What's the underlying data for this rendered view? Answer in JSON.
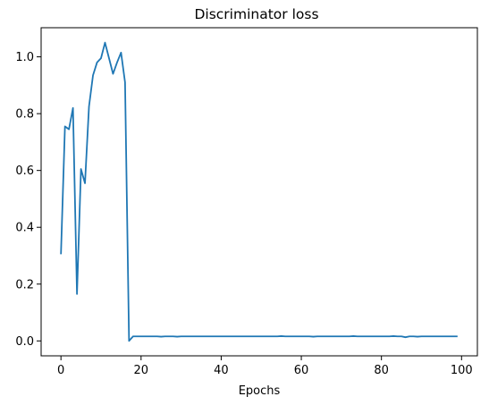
{
  "chart_data": {
    "type": "line",
    "title": "Discriminator loss",
    "xlabel": "Epochs",
    "ylabel": "",
    "xlim": [
      -4.95,
      103.95
    ],
    "ylim": [
      -0.0525,
      1.1025
    ],
    "xticks": [
      0,
      20,
      40,
      60,
      80,
      100
    ],
    "yticks": [
      0.0,
      0.2,
      0.4,
      0.6,
      0.8,
      1.0
    ],
    "xtick_labels": [
      "0",
      "20",
      "40",
      "60",
      "80",
      "100"
    ],
    "ytick_labels": [
      "0.0",
      "0.2",
      "0.4",
      "0.6",
      "0.8",
      "1.0"
    ],
    "grid": false,
    "legend": "none",
    "series": [
      {
        "color": "#1f77b4",
        "x": [
          0,
          1,
          2,
          3,
          4,
          5,
          6,
          7,
          8,
          9,
          10,
          11,
          12,
          13,
          14,
          15,
          16,
          17,
          18,
          19,
          20,
          21,
          22,
          23,
          24,
          25,
          26,
          27,
          28,
          29,
          30,
          31,
          32,
          33,
          34,
          35,
          36,
          37,
          38,
          39,
          40,
          41,
          42,
          43,
          44,
          45,
          46,
          47,
          48,
          49,
          50,
          51,
          52,
          53,
          54,
          55,
          56,
          57,
          58,
          59,
          60,
          61,
          62,
          63,
          64,
          65,
          66,
          67,
          68,
          69,
          70,
          71,
          72,
          73,
          74,
          75,
          76,
          77,
          78,
          79,
          80,
          81,
          82,
          83,
          84,
          85,
          86,
          87,
          88,
          89,
          90,
          91,
          92,
          93,
          94,
          95,
          96,
          97,
          98,
          99
        ],
        "values": [
          0.305,
          0.755,
          0.745,
          0.82,
          0.165,
          0.605,
          0.555,
          0.825,
          0.935,
          0.98,
          0.995,
          1.05,
          0.995,
          0.94,
          0.98,
          1.015,
          0.91,
          0.0,
          0.016,
          0.016,
          0.016,
          0.016,
          0.016,
          0.016,
          0.016,
          0.015,
          0.016,
          0.016,
          0.016,
          0.015,
          0.016,
          0.016,
          0.016,
          0.016,
          0.016,
          0.016,
          0.016,
          0.016,
          0.016,
          0.016,
          0.016,
          0.016,
          0.016,
          0.016,
          0.016,
          0.016,
          0.016,
          0.016,
          0.016,
          0.016,
          0.016,
          0.016,
          0.016,
          0.016,
          0.016,
          0.017,
          0.016,
          0.016,
          0.016,
          0.016,
          0.016,
          0.016,
          0.016,
          0.015,
          0.016,
          0.016,
          0.016,
          0.016,
          0.016,
          0.016,
          0.016,
          0.016,
          0.016,
          0.017,
          0.016,
          0.016,
          0.016,
          0.016,
          0.016,
          0.016,
          0.016,
          0.016,
          0.016,
          0.017,
          0.016,
          0.016,
          0.013,
          0.016,
          0.016,
          0.015,
          0.016,
          0.016,
          0.016,
          0.016,
          0.016,
          0.016,
          0.016,
          0.016,
          0.016,
          0.016
        ]
      }
    ]
  }
}
